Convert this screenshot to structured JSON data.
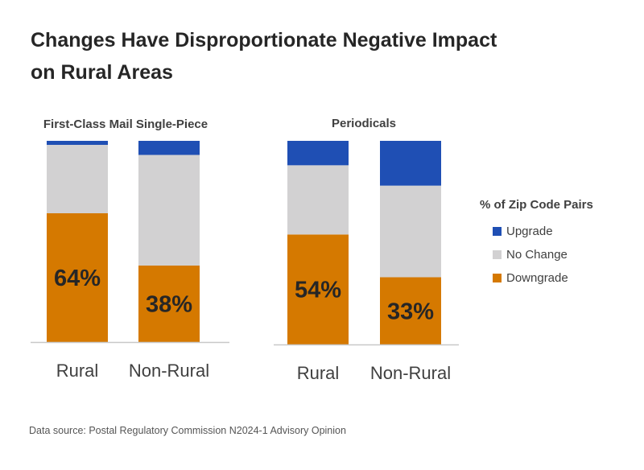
{
  "title_line1": "Changes Have Disproportionate Negative Impact",
  "title_line2": "on Rural Areas",
  "source": "Data source: Postal Regulatory Commission N2024-1 Advisory Opinion",
  "legend": {
    "title": "% of Zip Code Pairs",
    "items": [
      {
        "label": "Upgrade",
        "color": "#1f4fb4"
      },
      {
        "label": "No Change",
        "color": "#d2d1d2"
      },
      {
        "label": "Downgrade",
        "color": "#d57900"
      }
    ]
  },
  "chart_data": [
    {
      "type": "bar",
      "stacked": true,
      "title": "First-Class Mail Single-Piece",
      "categories": [
        "Rural",
        "Non-Rural"
      ],
      "series": [
        {
          "name": "Downgrade",
          "values": [
            64,
            38
          ]
        },
        {
          "name": "No Change",
          "values": [
            34,
            55
          ]
        },
        {
          "name": "Upgrade",
          "values": [
            2,
            7
          ]
        }
      ],
      "data_labels": [
        "64%",
        "38%"
      ],
      "ylim": [
        0,
        100
      ]
    },
    {
      "type": "bar",
      "stacked": true,
      "title": "Periodicals",
      "categories": [
        "Rural",
        "Non-Rural"
      ],
      "series": [
        {
          "name": "Downgrade",
          "values": [
            54,
            33
          ]
        },
        {
          "name": "No Change",
          "values": [
            34,
            45
          ]
        },
        {
          "name": "Upgrade",
          "values": [
            12,
            22
          ]
        }
      ],
      "data_labels": [
        "54%",
        "33%"
      ],
      "ylim": [
        0,
        100
      ]
    }
  ]
}
